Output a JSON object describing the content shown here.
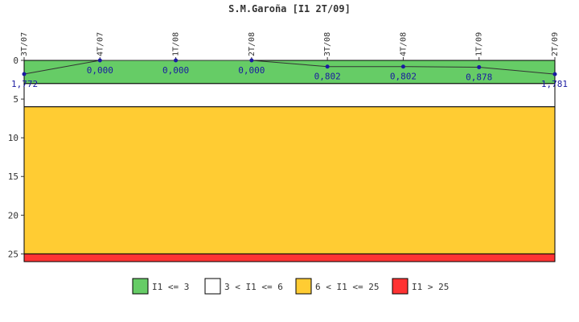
{
  "chart_data": {
    "type": "line",
    "title": "S.M.Garoña [I1 2T/09]",
    "xlabel": "",
    "ylabel": "",
    "y_inverted": true,
    "ylim": [
      0,
      26
    ],
    "yticks": [
      0,
      5,
      10,
      15,
      20,
      25
    ],
    "categories": [
      "3T/07",
      "4T/07",
      "1T/08",
      "2T/08",
      "3T/08",
      "4T/08",
      "1T/09",
      "2T/09"
    ],
    "series": [
      {
        "values": [
          1.772,
          0.0,
          0.0,
          0.0,
          0.802,
          0.802,
          0.878,
          1.781
        ],
        "labels": [
          "1,772",
          "0,000",
          "0,000",
          "0,000",
          "0,802",
          "0,802",
          "0,878",
          "1,781"
        ],
        "color": "#1a1aa0"
      }
    ],
    "bands": [
      {
        "from": 0,
        "to": 3,
        "color": "#66cc66",
        "legend": "I1 <= 3"
      },
      {
        "from": 3,
        "to": 6,
        "color": "#ffffff",
        "legend": "3 < I1 <= 6"
      },
      {
        "from": 6,
        "to": 25,
        "color": "#ffcc33",
        "legend": "6 < I1 <= 25"
      },
      {
        "from": 25,
        "to": 26,
        "color": "#ff3333",
        "legend": "I1 > 25"
      }
    ],
    "grid": false,
    "legend_position": "bottom-center"
  }
}
